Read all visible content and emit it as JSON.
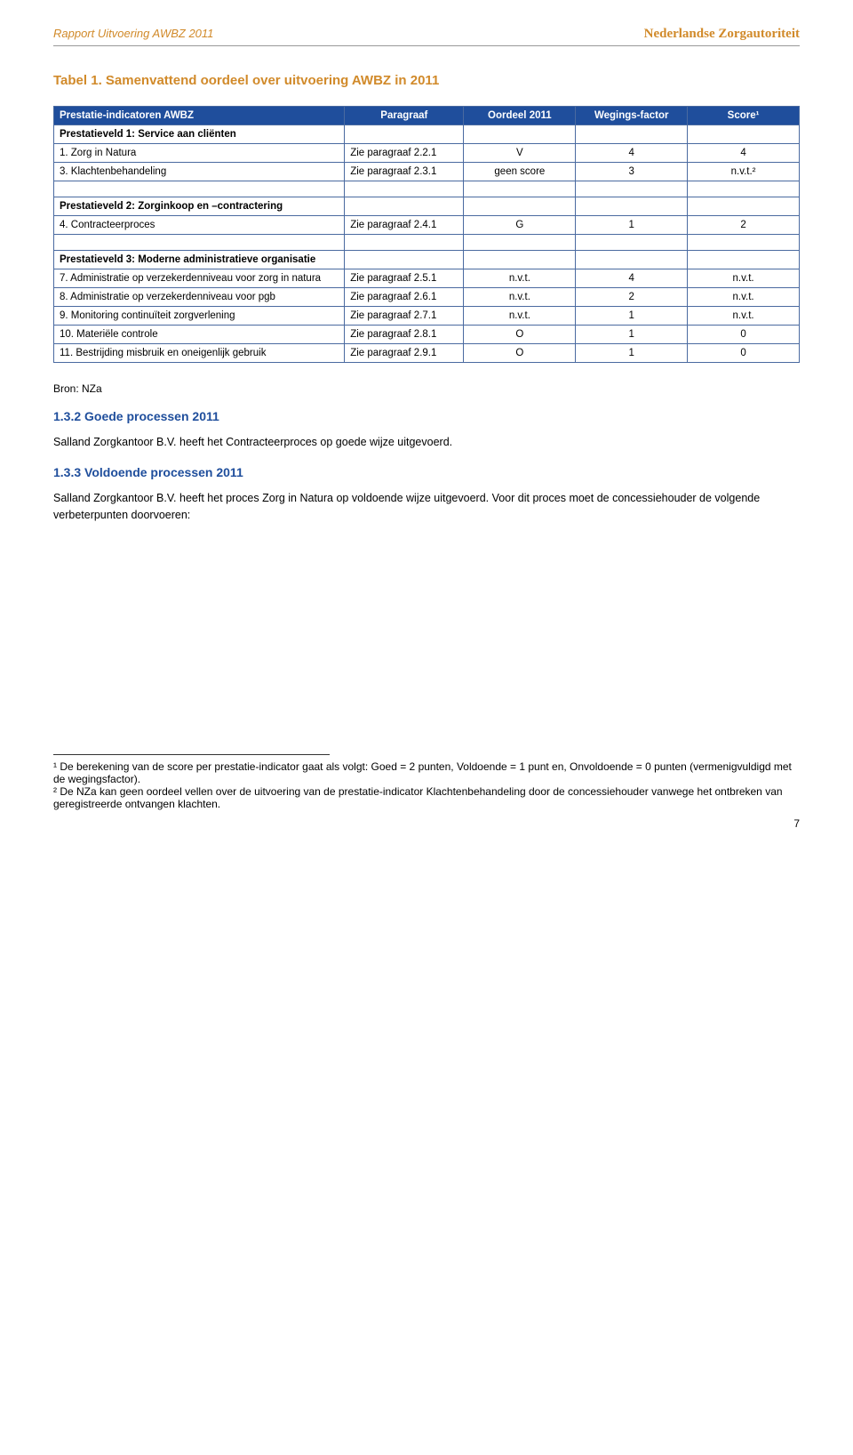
{
  "header": {
    "left": "Rapport Uitvoering AWBZ 2011",
    "right": "Nederlandse Zorgautoriteit"
  },
  "title": "Tabel 1. Samenvattend oordeel over uitvoering AWBZ in 2011",
  "table": {
    "columns": [
      "Prestatie-indicatoren AWBZ",
      "Paragraaf",
      "Oordeel 2011",
      "Wegings-factor",
      "Score¹"
    ],
    "sections": [
      {
        "header": "Prestatieveld 1: Service aan cliënten",
        "rows": [
          {
            "label": "1. Zorg in Natura",
            "para": "Zie paragraaf 2.2.1",
            "oordeel": "V",
            "weging": "4",
            "score": "4"
          },
          {
            "label": "3. Klachtenbehandeling",
            "para": "Zie paragraaf 2.3.1",
            "oordeel": "geen score",
            "weging": "3",
            "score": "n.v.t.²"
          }
        ]
      },
      {
        "header": "Prestatieveld 2: Zorginkoop en –contractering",
        "rows": [
          {
            "label": "4. Contracteerproces",
            "para": "Zie paragraaf 2.4.1",
            "oordeel": "G",
            "weging": "1",
            "score": "2"
          }
        ]
      },
      {
        "header": "Prestatieveld 3: Moderne administratieve organisatie",
        "rows": [
          {
            "label": "7. Administratie op verzekerdenniveau voor zorg in natura",
            "para": "Zie paragraaf 2.5.1",
            "oordeel": "n.v.t.",
            "weging": "4",
            "score": "n.v.t."
          },
          {
            "label": "8. Administratie op verzekerdenniveau voor pgb",
            "para": "Zie paragraaf 2.6.1",
            "oordeel": "n.v.t.",
            "weging": "2",
            "score": "n.v.t."
          },
          {
            "label": "9. Monitoring continuïteit zorgverlening",
            "para": "Zie paragraaf 2.7.1",
            "oordeel": "n.v.t.",
            "weging": "1",
            "score": "n.v.t."
          },
          {
            "label": "10. Materiële controle",
            "para": "Zie paragraaf 2.8.1",
            "oordeel": "O",
            "weging": "1",
            "score": "0"
          },
          {
            "label": "11. Bestrijding misbruik en oneigenlijk gebruik",
            "para": "Zie paragraaf 2.9.1",
            "oordeel": "O",
            "weging": "1",
            "score": "0"
          }
        ]
      }
    ],
    "header_bg": "#1f4e9c",
    "header_fg": "#ffffff",
    "border_color": "#4a6aa0"
  },
  "source": "Bron: NZa",
  "section_132": {
    "heading": "1.3.2 Goede processen 2011",
    "body": "Salland Zorgkantoor B.V. heeft het Contracteerproces op goede wijze uitgevoerd."
  },
  "section_133": {
    "heading": "1.3.3 Voldoende processen 2011",
    "body": "Salland Zorgkantoor B.V. heeft het proces Zorg in Natura op voldoende wijze uitgevoerd. Voor dit proces moet de concessiehouder de volgende verbeterpunten doorvoeren:"
  },
  "footnotes": {
    "fn1": "¹ De berekening van de score per prestatie-indicator gaat als volgt: Goed = 2 punten, Voldoende = 1 punt en, Onvoldoende = 0 punten (vermenigvuldigd met de wegingsfactor).",
    "fn2": "² De NZa kan geen oordeel vellen over de uitvoering van de prestatie-indicator Klachtenbehandeling door de concessiehouder vanwege het ontbreken van geregistreerde ontvangen klachten."
  },
  "page_number": "7"
}
